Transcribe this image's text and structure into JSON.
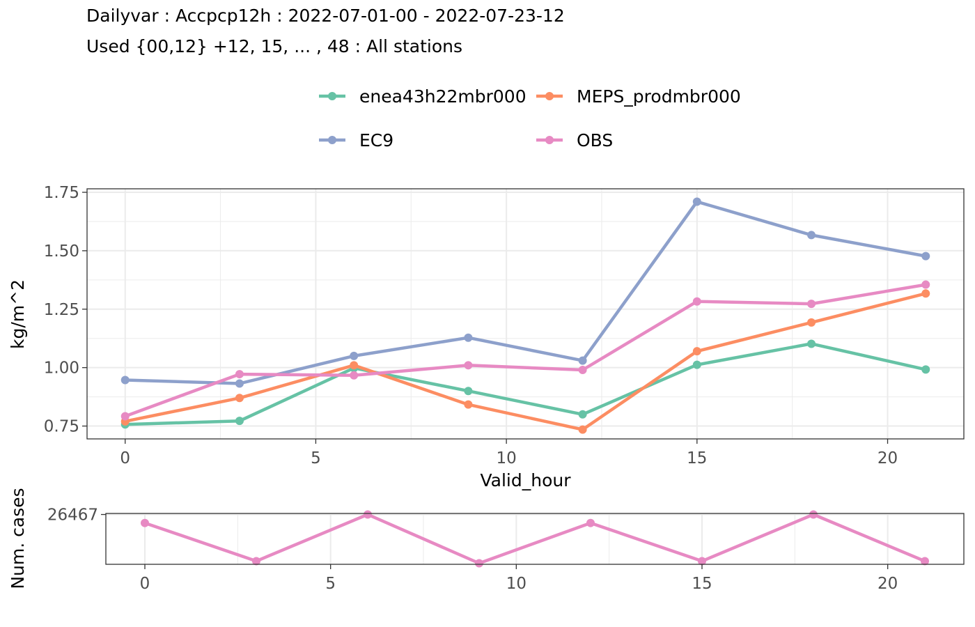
{
  "title_line1": "Dailyvar : Accpcp12h : 2022-07-01-00 - 2022-07-23-12",
  "title_line2": "Used {00,12} +12, 15, ... , 48 : All stations",
  "chart_data": [
    {
      "type": "line",
      "xlabel": "Valid_hour",
      "ylabel": "kg/m^2",
      "xlim": [
        -1,
        22
      ],
      "ylim": [
        0.695,
        1.765
      ],
      "x_ticks": [
        0,
        5,
        10,
        15,
        20
      ],
      "x_tick_labels": [
        "0",
        "5",
        "10",
        "15",
        "20"
      ],
      "x_minor_ticks": [
        2.5,
        7.5,
        12.5,
        17.5
      ],
      "y_ticks": [
        0.75,
        1.0,
        1.25,
        1.5,
        1.75
      ],
      "y_tick_labels": [
        "0.75",
        "1.00",
        "1.25",
        "1.50",
        "1.75"
      ],
      "y_minor_ticks": [
        0.875,
        1.125,
        1.375,
        1.625
      ],
      "grid": true,
      "legend_position": "top",
      "x": [
        0,
        3,
        6,
        9,
        12,
        15,
        18,
        21
      ],
      "series": [
        {
          "name": "enea43h22mbr000",
          "color": "#66c2a5",
          "values": [
            0.757,
            0.772,
            0.998,
            0.9,
            0.8,
            1.012,
            1.102,
            0.992
          ]
        },
        {
          "name": "MEPS_prodmbr000",
          "color": "#fc8d62",
          "values": [
            0.77,
            0.87,
            1.01,
            0.842,
            0.735,
            1.07,
            1.193,
            1.317
          ]
        },
        {
          "name": "EC9",
          "color": "#8da0cb",
          "values": [
            0.947,
            0.932,
            1.05,
            1.128,
            1.03,
            1.71,
            1.567,
            1.477
          ]
        },
        {
          "name": "OBS",
          "color": "#e78ac3",
          "values": [
            0.792,
            0.972,
            0.967,
            1.01,
            0.99,
            1.283,
            1.273,
            1.355
          ]
        }
      ]
    },
    {
      "type": "line",
      "xlabel": "",
      "ylabel": "Num. cases",
      "xlim": [
        -1.05,
        22.05
      ],
      "ylim": [
        26443.5,
        26467.5
      ],
      "x_ticks": [
        0,
        5,
        10,
        15,
        20
      ],
      "x_tick_labels": [
        "0",
        "5",
        "10",
        "15",
        "20"
      ],
      "x_minor_ticks": [
        2.5,
        7.5,
        12.5,
        17.5
      ],
      "y_ticks": [
        26467
      ],
      "y_tick_labels": [
        "26467"
      ],
      "grid": true,
      "x": [
        0,
        3,
        6,
        9,
        12,
        15,
        18,
        21
      ],
      "series": [
        {
          "color": "#e78ac3",
          "values": [
            26463,
            26445,
            26467,
            26444,
            26463,
            26445,
            26467,
            26445
          ]
        }
      ]
    }
  ]
}
